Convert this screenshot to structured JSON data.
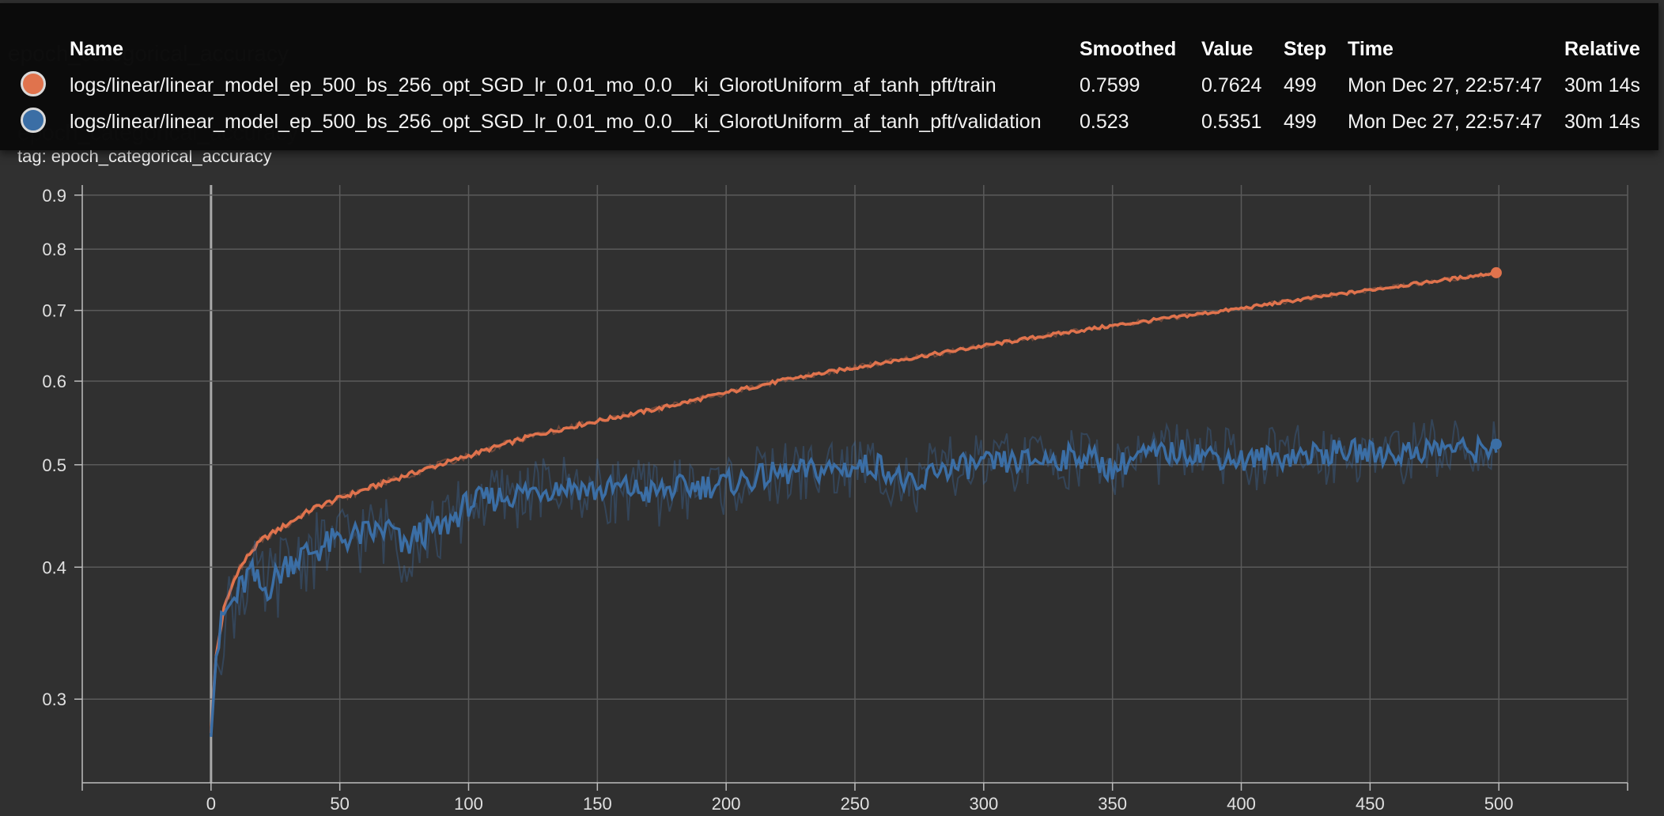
{
  "card": {
    "title": "epoch_categorical_accuracy",
    "tag_label": "tag: epoch_categorical_accuracy"
  },
  "tooltip": {
    "headers": {
      "name": "Name",
      "smoothed": "Smoothed",
      "value": "Value",
      "step": "Step",
      "time": "Time",
      "relative": "Relative"
    },
    "rows": [
      {
        "color": "#e0734d",
        "name": "logs/linear/linear_model_ep_500_bs_256_opt_SGD_lr_0.01_mo_0.0__ki_GlorotUniform_af_tanh_pft/train",
        "smoothed": "0.7599",
        "value": "0.7624",
        "step": "499",
        "time": "Mon Dec 27, 22:57:47",
        "relative": "30m 14s"
      },
      {
        "color": "#3b6ea5",
        "name": "logs/linear/linear_model_ep_500_bs_256_opt_SGD_lr_0.01_mo_0.0__ki_GlorotUniform_af_tanh_pft/validation",
        "smoothed": "0.523",
        "value": "0.5351",
        "step": "499",
        "time": "Mon Dec 27, 22:57:47",
        "relative": "30m 14s"
      }
    ]
  },
  "chart_data": {
    "type": "line",
    "title": "epoch_categorical_accuracy",
    "xlabel": "",
    "ylabel": "",
    "xlim": [
      -50,
      550
    ],
    "ylim": [
      0.25,
      0.92
    ],
    "yscale": "log",
    "xticks": [
      "0",
      "50",
      "100",
      "150",
      "200",
      "250",
      "300",
      "350",
      "400",
      "450",
      "500"
    ],
    "yticks": [
      "0.3",
      "0.4",
      "0.5",
      "0.6",
      "0.7",
      "0.8",
      "0.9"
    ],
    "grid": true,
    "series": [
      {
        "name": "train",
        "color": "#e0734d",
        "x": [
          0,
          2,
          5,
          10,
          15,
          20,
          30,
          40,
          50,
          60,
          75,
          100,
          125,
          150,
          175,
          200,
          225,
          250,
          275,
          300,
          325,
          350,
          375,
          400,
          425,
          450,
          475,
          499
        ],
        "smoothed": [
          0.279,
          0.33,
          0.365,
          0.395,
          0.412,
          0.425,
          0.44,
          0.455,
          0.465,
          0.474,
          0.488,
          0.51,
          0.533,
          0.55,
          0.566,
          0.585,
          0.603,
          0.618,
          0.633,
          0.648,
          0.663,
          0.677,
          0.69,
          0.703,
          0.718,
          0.732,
          0.746,
          0.7599
        ],
        "last_value": 0.7624
      },
      {
        "name": "validation",
        "color": "#3b6ea5",
        "x": [
          0,
          2,
          5,
          10,
          15,
          20,
          25,
          30,
          35,
          40,
          50,
          60,
          70,
          75,
          80,
          90,
          100,
          110,
          120,
          130,
          140,
          150,
          160,
          170,
          180,
          200,
          220,
          240,
          260,
          275,
          280,
          300,
          320,
          340,
          350,
          360,
          380,
          390,
          400,
          420,
          440,
          460,
          480,
          490,
          499
        ],
        "smoothed": [
          0.279,
          0.33,
          0.36,
          0.375,
          0.395,
          0.38,
          0.39,
          0.405,
          0.41,
          0.415,
          0.425,
          0.43,
          0.435,
          0.415,
          0.43,
          0.435,
          0.46,
          0.465,
          0.47,
          0.475,
          0.478,
          0.472,
          0.476,
          0.47,
          0.475,
          0.48,
          0.49,
          0.495,
          0.5,
          0.47,
          0.495,
          0.5,
          0.505,
          0.51,
          0.495,
          0.51,
          0.515,
          0.51,
          0.505,
          0.51,
          0.515,
          0.512,
          0.52,
          0.515,
          0.523
        ],
        "last_value": 0.5351
      }
    ]
  }
}
